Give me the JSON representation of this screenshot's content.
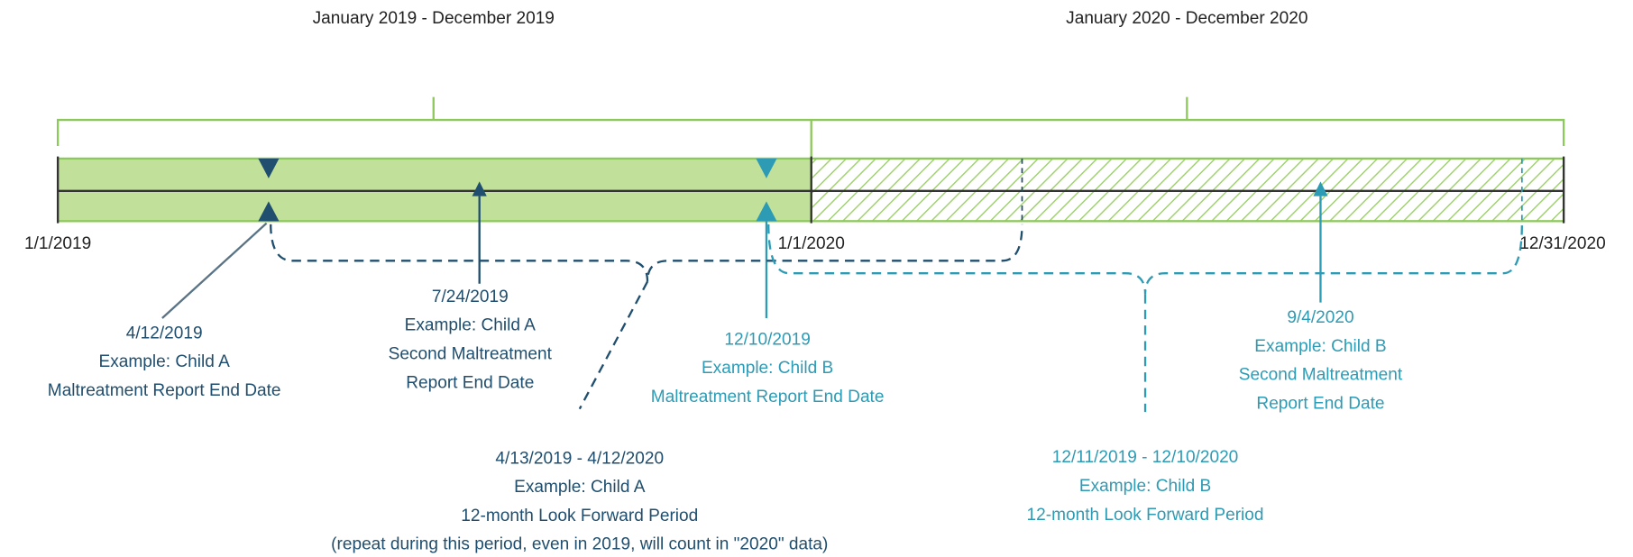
{
  "periods": [
    "January 2019 - December 2019",
    "January 2020 - December 2020"
  ],
  "axis_labels": [
    "1/1/2019",
    "1/1/2020",
    "12/31/2020"
  ],
  "callouts": [
    {
      "lines": [
        "4/12/2019",
        "Example: Child A",
        "Maltreatment Report End Date"
      ]
    },
    {
      "lines": [
        "7/24/2019",
        "Example: Child A",
        "Second Maltreatment",
        "Report End Date"
      ]
    },
    {
      "lines": [
        "12/10/2019",
        "Example: Child B",
        "Maltreatment Report End Date"
      ]
    },
    {
      "lines": [
        "9/4/2020",
        "Example: Child B",
        "Second Maltreatment",
        "Report End Date"
      ]
    },
    {
      "lines": [
        "4/13/2019 - 4/12/2020",
        "Example: Child A",
        "12-month Look Forward Period",
        "(repeat during this period, even in 2019, will count in \"2020\" data)"
      ]
    },
    {
      "lines": [
        "12/11/2019 - 12/10/2020",
        "Example: Child B",
        "12-month Look Forward Period"
      ]
    }
  ]
}
